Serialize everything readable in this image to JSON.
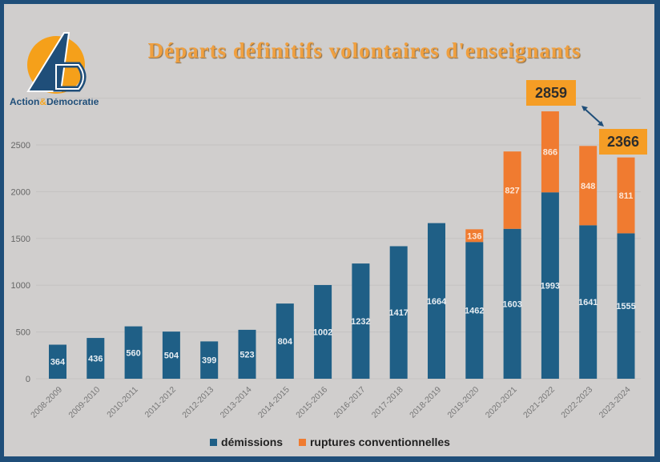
{
  "logo": {
    "part1": "Action",
    "amp": "&",
    "part2": "Démocratie",
    "letters": "AD"
  },
  "callouts": {
    "max_label": "2859",
    "last_label": "2366"
  },
  "colors": {
    "demissions": "#1f5f86",
    "ruptures": "#f07b30",
    "callout": "#f59d25",
    "frame": "#1f4e79"
  },
  "chart_data": {
    "type": "bar",
    "stacked": true,
    "title": "Départs définitifs volontaires d'enseignants",
    "xlabel": "",
    "ylabel": "",
    "ylim": [
      0,
      3000
    ],
    "yticks": [
      0,
      500,
      1000,
      1500,
      2000,
      2500
    ],
    "grid": true,
    "legend_position": "bottom",
    "categories": [
      "2008-2009",
      "2009-2010",
      "2010-2011",
      "2011-2012",
      "2012-2013",
      "2013-2014",
      "2014-2015",
      "2015-2016",
      "2016-2017",
      "2017-2018",
      "2018-2019",
      "2019-2020",
      "2020-2021",
      "2021-2022",
      "2022-2023",
      "2023-2024"
    ],
    "series": [
      {
        "name": "démissions",
        "values": [
          364,
          436,
          560,
          504,
          399,
          523,
          804,
          1002,
          1232,
          1417,
          1664,
          1462,
          1603,
          1993,
          1641,
          1555
        ]
      },
      {
        "name": "ruptures conventionnelles",
        "values": [
          0,
          0,
          0,
          0,
          0,
          0,
          0,
          0,
          0,
          0,
          0,
          136,
          827,
          866,
          848,
          811
        ]
      }
    ]
  }
}
